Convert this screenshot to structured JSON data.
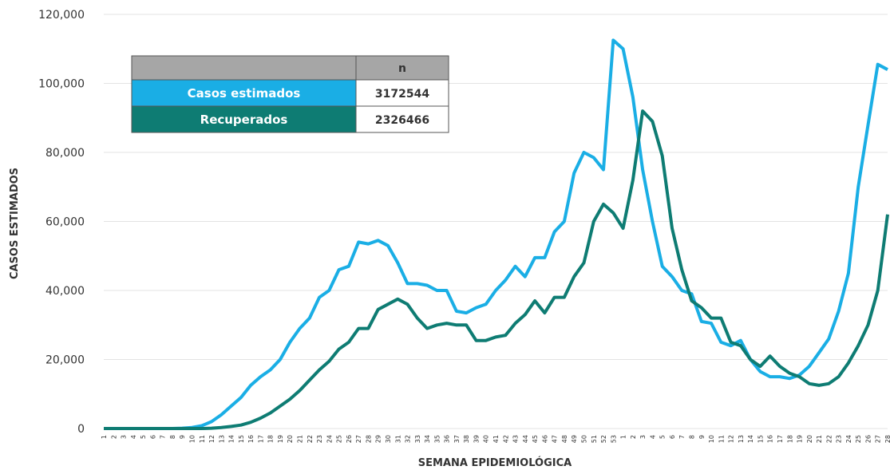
{
  "chart_data": {
    "type": "line",
    "y_label": "CASOS ESTIMADOS",
    "x_label": "SEMANA EPIDEMIOLÓGICA",
    "categories": [
      "1",
      "2",
      "3",
      "4",
      "5",
      "6",
      "7",
      "8",
      "9",
      "10",
      "11",
      "12",
      "13",
      "14",
      "15",
      "16",
      "17",
      "18",
      "19",
      "20",
      "21",
      "22",
      "23",
      "24",
      "25",
      "26",
      "27",
      "28",
      "29",
      "30",
      "31",
      "32",
      "33",
      "34",
      "35",
      "36",
      "37",
      "38",
      "39",
      "40",
      "41",
      "42",
      "43",
      "44",
      "45",
      "46",
      "47",
      "48",
      "49",
      "50",
      "51",
      "52",
      "53",
      "1",
      "2",
      "3",
      "4",
      "5",
      "6",
      "7",
      "8",
      "9",
      "10",
      "11",
      "12",
      "13",
      "14",
      "15",
      "16",
      "17",
      "18",
      "19",
      "20",
      "21",
      "22",
      "23",
      "24",
      "25",
      "26",
      "27",
      "28"
    ],
    "series": [
      {
        "name": "Casos estimados",
        "color": "#1aaee5",
        "total": 3172544,
        "values": [
          0,
          0,
          0,
          0,
          0,
          0,
          0,
          0,
          100,
          300,
          800,
          2000,
          4000,
          6500,
          9000,
          12500,
          15000,
          17000,
          20000,
          25000,
          29000,
          32000,
          38000,
          40000,
          46000,
          47000,
          54000,
          53500,
          54500,
          53000,
          48000,
          42000,
          42000,
          41500,
          40000,
          40000,
          34000,
          33500,
          35000,
          36000,
          40000,
          43000,
          47000,
          44000,
          49500,
          49500,
          57000,
          60000,
          74000,
          80000,
          78500,
          75000,
          112500,
          110000,
          96000,
          75000,
          60000,
          47000,
          44000,
          40000,
          39000,
          31000,
          30500,
          25000,
          24000,
          25500,
          20000,
          16500,
          15000,
          15000,
          14500,
          15500,
          18000,
          22000,
          26000,
          34000,
          45000,
          70000,
          88000,
          105500,
          104000
        ]
      },
      {
        "name": "Recuperados",
        "color": "#0e7c73",
        "total": 2326466,
        "values": [
          0,
          0,
          0,
          0,
          0,
          0,
          0,
          0,
          0,
          0,
          0,
          100,
          300,
          600,
          1000,
          1800,
          3000,
          4500,
          6500,
          8500,
          11000,
          14000,
          17000,
          19500,
          23000,
          25000,
          29000,
          29000,
          34500,
          36000,
          37500,
          36000,
          32000,
          29000,
          30000,
          30500,
          30000,
          30000,
          25500,
          25500,
          26500,
          27000,
          30500,
          33000,
          37000,
          33500,
          38000,
          38000,
          44000,
          48000,
          60000,
          65000,
          62500,
          58000,
          72000,
          92000,
          89000,
          79000,
          58000,
          46000,
          37000,
          35000,
          32000,
          32000,
          25000,
          24000,
          20000,
          18000,
          21000,
          18000,
          16000,
          15000,
          13000,
          12500,
          13000,
          15000,
          19000,
          24000,
          30000,
          40000,
          62000
        ]
      }
    ],
    "table_header": "n",
    "ylim": [
      0,
      120000
    ],
    "yticks": [
      0,
      {
        "value": 20000,
        "label": "20,000"
      },
      {
        "value": 40000,
        "label": "40,000"
      },
      {
        "value": 60000,
        "label": "60,000"
      },
      {
        "value": 80000,
        "label": "80,000"
      },
      {
        "value": 100000,
        "label": "100,000"
      },
      {
        "value": 120000,
        "label": "120,000"
      }
    ],
    "grid": true
  }
}
